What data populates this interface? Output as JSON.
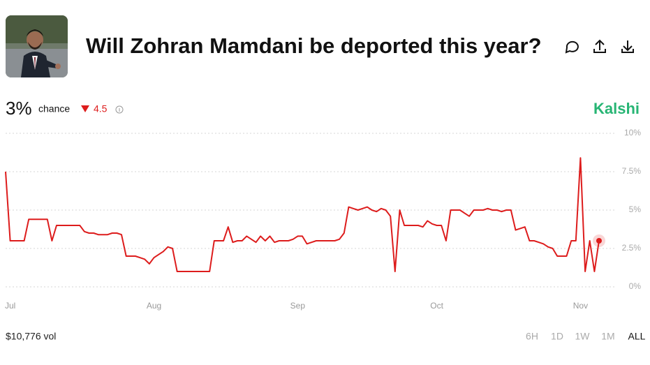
{
  "market": {
    "title": "Will Zohran Mamdani be deported this year?",
    "probability": "3%",
    "chance_label": "chance",
    "change": "4.5",
    "brand": "Kalshi"
  },
  "footer": {
    "volume": "$10,776 vol",
    "ranges": [
      "6H",
      "1D",
      "1W",
      "1M",
      "ALL"
    ],
    "selected_range": 4
  },
  "chart_data": {
    "type": "line",
    "color": "#dd1c1c",
    "categories": [
      null,
      "Jul",
      null,
      null,
      null,
      null,
      null,
      null,
      null,
      null,
      null,
      null,
      null,
      null,
      null,
      null,
      null,
      null,
      null,
      null,
      null,
      null,
      null,
      null,
      null,
      null,
      null,
      null,
      null,
      null,
      null,
      null,
      "Aug",
      null,
      null,
      null,
      null,
      null,
      null,
      null,
      null,
      null,
      null,
      null,
      null,
      null,
      null,
      null,
      null,
      null,
      null,
      null,
      null,
      null,
      null,
      null,
      null,
      null,
      null,
      null,
      null,
      null,
      null,
      "Sep",
      null,
      null,
      null,
      null,
      null,
      null,
      null,
      null,
      null,
      null,
      null,
      null,
      null,
      null,
      null,
      null,
      null,
      null,
      null,
      null,
      null,
      null,
      null,
      null,
      null,
      null,
      null,
      null,
      null,
      "Oct",
      null,
      null,
      null,
      null,
      null,
      null,
      null,
      null,
      null,
      null,
      null,
      null,
      null,
      null,
      null,
      null,
      null,
      null,
      null,
      null,
      null,
      null,
      null,
      null,
      null,
      null,
      null,
      null,
      null,
      null,
      "Nov",
      null,
      null,
      null,
      null
    ],
    "values": [
      7.5,
      3.0,
      3.0,
      3.0,
      3.0,
      4.4,
      4.4,
      4.4,
      4.4,
      4.4,
      3.0,
      4.0,
      4.0,
      4.0,
      4.0,
      4.0,
      4.0,
      3.6,
      3.5,
      3.5,
      3.4,
      3.4,
      3.4,
      3.5,
      3.5,
      3.4,
      2.0,
      2.0,
      2.0,
      1.9,
      1.8,
      1.5,
      1.9,
      2.1,
      2.3,
      2.6,
      2.5,
      1.0,
      1.0,
      1.0,
      1.0,
      1.0,
      1.0,
      1.0,
      1.0,
      3.0,
      3.0,
      3.0,
      3.9,
      2.9,
      3.0,
      3.0,
      3.3,
      3.1,
      2.9,
      3.3,
      3.0,
      3.3,
      2.9,
      3.0,
      3.0,
      3.0,
      3.1,
      3.3,
      3.3,
      2.8,
      2.9,
      3.0,
      3.0,
      3.0,
      3.0,
      3.0,
      3.1,
      3.5,
      5.2,
      5.1,
      5.0,
      5.1,
      5.2,
      5.0,
      4.9,
      5.1,
      5.0,
      4.6,
      1.0,
      5.0,
      4.0,
      4.0,
      4.0,
      4.0,
      3.9,
      4.3,
      4.1,
      4.0,
      4.0,
      3.0,
      5.0,
      5.0,
      5.0,
      4.8,
      4.6,
      5.0,
      5.0,
      5.0,
      5.1,
      5.0,
      5.0,
      4.9,
      5.0,
      5.0,
      3.7,
      3.8,
      3.9,
      3.0,
      3.0,
      2.9,
      2.8,
      2.6,
      2.5,
      2.0,
      2.0,
      2.0,
      3.0,
      3.0,
      8.4,
      1.0,
      3.0,
      1.0,
      3.0
    ],
    "ylim": [
      0,
      10
    ],
    "yticks": [
      {
        "value": 0,
        "label": "0%"
      },
      {
        "value": 2.5,
        "label": "2.5%"
      },
      {
        "value": 5,
        "label": "5%"
      },
      {
        "value": 7.5,
        "label": "7.5%"
      },
      {
        "value": 10,
        "label": "10%"
      }
    ],
    "grid": true
  }
}
